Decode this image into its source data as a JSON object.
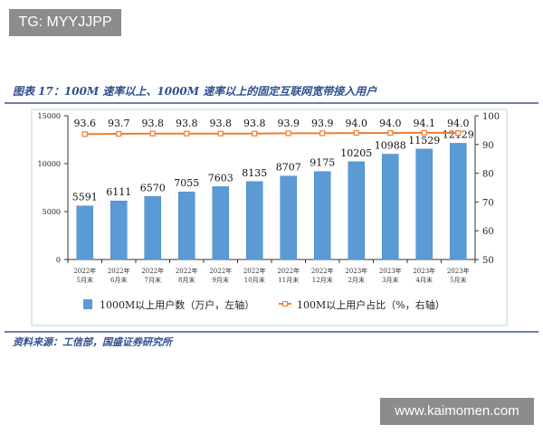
{
  "watermark_top": "TG: MYYJJPP",
  "watermark_bottom": "www.kaimomen.com",
  "figure_title": "图表 17：100M 速率以上、1000M 速率以上的固定互联网宽带接入用户",
  "source": "资料来源：工信部，国盛证券研究所",
  "chart_data": {
    "type": "bar+line",
    "categories": [
      "2022年\n5月末",
      "2022年\n6月末",
      "2022年\n7月末",
      "2022年\n8月末",
      "2022年\n9月末",
      "2022年\n10月末",
      "2022年\n11月末",
      "2022年\n12月末",
      "2023年\n2月末",
      "2023年\n3月末",
      "2023年\n4月末",
      "2023年\n5月末"
    ],
    "series": [
      {
        "name": "1000M以上用户数（万户，左轴）",
        "type": "bar",
        "axis": "left",
        "color": "#5b9bd5",
        "values": [
          5591,
          6111,
          6570,
          7055,
          7603,
          8135,
          8707,
          9175,
          10205,
          10988,
          11529,
          12129
        ],
        "labels": [
          "5591",
          "6111",
          "6570",
          "7055",
          "7603",
          "8135",
          "8707",
          "9175",
          "10205",
          "10988",
          "11529",
          "12129"
        ]
      },
      {
        "name": "100M以上用户占比（%，右轴）",
        "type": "line",
        "axis": "right",
        "color": "#ed7d31",
        "values": [
          93.6,
          93.7,
          93.8,
          93.8,
          93.8,
          93.8,
          93.9,
          93.9,
          94.0,
          94.0,
          94.1,
          94.0
        ],
        "labels": [
          "93.6",
          "93.7",
          "93.8",
          "93.8",
          "93.8",
          "93.8",
          "93.9",
          "93.9",
          "94.0",
          "94.0",
          "94.1",
          "94.0"
        ]
      }
    ],
    "y_left": {
      "range": [
        0,
        15000
      ],
      "ticks": [
        "0",
        "5000",
        "10000",
        "15000"
      ]
    },
    "y_right": {
      "range": [
        50,
        100
      ],
      "ticks": [
        "50",
        "60",
        "70",
        "80",
        "90",
        "100"
      ]
    },
    "grid": false,
    "legend": "bottom"
  }
}
